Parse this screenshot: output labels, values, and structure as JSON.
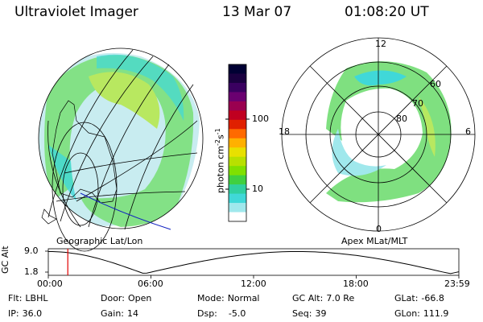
{
  "header": {
    "title": "Ultraviolet Imager",
    "date": "13 Mar 07",
    "time": "01:08:20 UT"
  },
  "left_panel": {
    "caption": "Geographic Lat/Lon"
  },
  "right_panel": {
    "caption": "Apex MLat/MLT",
    "mlt_labels": {
      "top": "12",
      "left": "18",
      "right": "6",
      "bottom": "0"
    },
    "lat_labels": [
      "60",
      "70",
      "80"
    ]
  },
  "colorbar": {
    "unit_label": "photon cm",
    "unit_exp1": "-2",
    "unit_s": "s",
    "unit_exp2": "-1",
    "tick_100": "100",
    "tick_10": "10",
    "colors_top_to_bottom": [
      "#000033",
      "#1a0040",
      "#3a0060",
      "#6a0070",
      "#9a0050",
      "#c00020",
      "#e02000",
      "#ff6a00",
      "#ffb000",
      "#e8e000",
      "#b8e000",
      "#80e000",
      "#40d040",
      "#30d0a0",
      "#40d8d8",
      "#a0e8ec",
      "#ffffff"
    ]
  },
  "timeline": {
    "axis_label": "GC Alt",
    "y_top": "9.0",
    "y_bottom": "1.8",
    "ticks": [
      "00:00",
      "06:00",
      "12:00",
      "18:00",
      "23:59"
    ],
    "marker_hour": 1.14
  },
  "info": {
    "flt_label": "Flt:",
    "flt_value": "LBHL",
    "ip_label": "IP:",
    "ip_value": "36.0",
    "door_label": "Door:",
    "door_value": "Open",
    "gain_label": "Gain:",
    "gain_value": "14",
    "mode_label": "Mode:",
    "mode_value": "Normal",
    "dsp_label": "Dsp:",
    "dsp_value": "-5.0",
    "gcalt_label": "GC Alt:",
    "gcalt_value": "7.0 Re",
    "seq_label": "Seq:",
    "seq_value": "39",
    "glat_label": "GLat:",
    "glat_value": "-66.8",
    "glon_label": "GLon:",
    "glon_value": "111.9"
  }
}
